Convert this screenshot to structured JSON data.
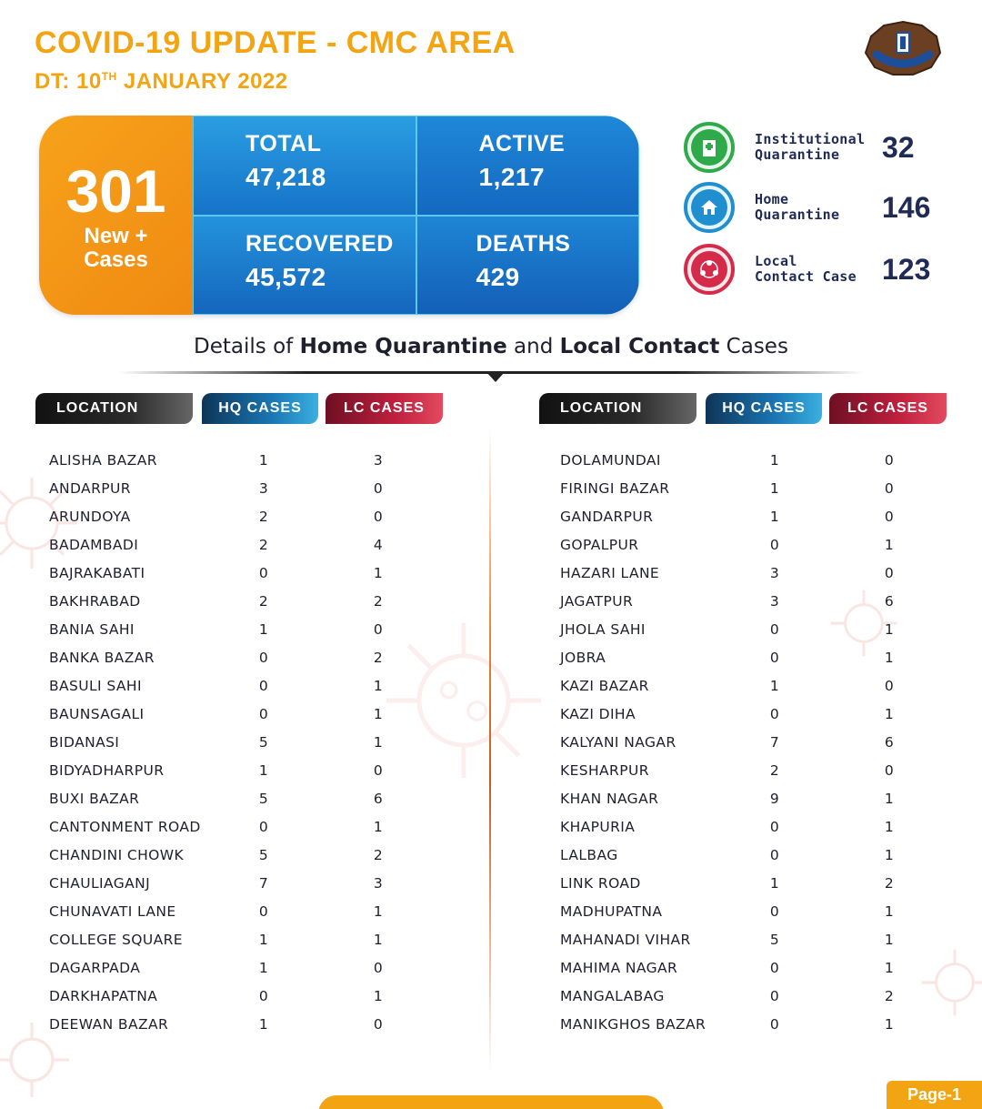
{
  "header": {
    "title": "COVID-19 UPDATE - CMC AREA",
    "date_prefix": "DT: 10",
    "date_sup": "TH",
    "date_suffix": " JANUARY 2022"
  },
  "summary": {
    "new_cases_value": "301",
    "new_cases_label_1": "New +",
    "new_cases_label_2": "Cases",
    "total_label": "TOTAL",
    "total_value": "47,218",
    "active_label": "ACTIVE",
    "active_value": "1,217",
    "recovered_label": "RECOVERED",
    "recovered_value": "45,572",
    "deaths_label": "DEATHS",
    "deaths_value": "429"
  },
  "quarantine": [
    {
      "label_1": "Institutional",
      "label_2": "Quarantine",
      "value": "32",
      "color": "#2eaa4a"
    },
    {
      "label_1": "Home",
      "label_2": "Quarantine",
      "value": "146",
      "color": "#1f8fd0"
    },
    {
      "label_1": "Local",
      "label_2": "Contact Case",
      "value": "123",
      "color": "#d62a4a"
    }
  ],
  "details": {
    "prefix": "Details of ",
    "bold_1": "Home Quarantine",
    "middle": " and ",
    "bold_2": "Local Contact",
    "suffix": " Cases"
  },
  "columns": {
    "location": "LOCATION",
    "hq": "HQ CASES",
    "lc": "LC CASES"
  },
  "left_rows": [
    {
      "name": "ALISHA BAZAR",
      "hq": "1",
      "lc": "3"
    },
    {
      "name": "ANDARPUR",
      "hq": "3",
      "lc": "0"
    },
    {
      "name": "ARUNDOYA",
      "hq": "2",
      "lc": "0"
    },
    {
      "name": "BADAMBADI",
      "hq": "2",
      "lc": "4"
    },
    {
      "name": "BAJRAKABATI",
      "hq": "0",
      "lc": "1"
    },
    {
      "name": "BAKHRABAD",
      "hq": "2",
      "lc": "2"
    },
    {
      "name": "BANIA SAHI",
      "hq": "1",
      "lc": "0"
    },
    {
      "name": "BANKA BAZAR",
      "hq": "0",
      "lc": "2"
    },
    {
      "name": "BASULI SAHI",
      "hq": "0",
      "lc": "1"
    },
    {
      "name": "BAUNSAGALI",
      "hq": "0",
      "lc": "1"
    },
    {
      "name": "BIDANASI",
      "hq": "5",
      "lc": "1"
    },
    {
      "name": "BIDYADHARPUR",
      "hq": "1",
      "lc": "0"
    },
    {
      "name": "BUXI BAZAR",
      "hq": "5",
      "lc": "6"
    },
    {
      "name": "CANTONMENT ROAD",
      "hq": "0",
      "lc": "1"
    },
    {
      "name": "CHANDINI CHOWK",
      "hq": "5",
      "lc": "2"
    },
    {
      "name": "CHAULIAGANJ",
      "hq": "7",
      "lc": "3"
    },
    {
      "name": "CHUNAVATI LANE",
      "hq": "0",
      "lc": "1"
    },
    {
      "name": "COLLEGE SQUARE",
      "hq": "1",
      "lc": "1"
    },
    {
      "name": "DAGARPADA",
      "hq": "1",
      "lc": "0"
    },
    {
      "name": "DARKHAPATNA",
      "hq": "0",
      "lc": "1"
    },
    {
      "name": "DEEWAN BAZAR",
      "hq": "1",
      "lc": "0"
    }
  ],
  "right_rows": [
    {
      "name": "DOLAMUNDAI",
      "hq": "1",
      "lc": "0"
    },
    {
      "name": "FIRINGI BAZAR",
      "hq": "1",
      "lc": "0"
    },
    {
      "name": "GANDARPUR",
      "hq": "1",
      "lc": "0"
    },
    {
      "name": "GOPALPUR",
      "hq": "0",
      "lc": "1"
    },
    {
      "name": "HAZARI LANE",
      "hq": "3",
      "lc": "0"
    },
    {
      "name": "JAGATPUR",
      "hq": "3",
      "lc": "6"
    },
    {
      "name": "JHOLA SAHI",
      "hq": "0",
      "lc": "1"
    },
    {
      "name": "JOBRA",
      "hq": "0",
      "lc": "1"
    },
    {
      "name": "KAZI BAZAR",
      "hq": "1",
      "lc": "0"
    },
    {
      "name": "KAZI DIHA",
      "hq": "0",
      "lc": "1"
    },
    {
      "name": "KALYANI NAGAR",
      "hq": "7",
      "lc": "6"
    },
    {
      "name": "KESHARPUR",
      "hq": "2",
      "lc": "0"
    },
    {
      "name": "KHAN NAGAR",
      "hq": "9",
      "lc": "1"
    },
    {
      "name": "KHAPURIA",
      "hq": "0",
      "lc": "1"
    },
    {
      "name": "LALBAG",
      "hq": "0",
      "lc": "1"
    },
    {
      "name": "LINK ROAD",
      "hq": "1",
      "lc": "2"
    },
    {
      "name": "MADHUPATNA",
      "hq": "0",
      "lc": "1"
    },
    {
      "name": "MAHANADI VIHAR",
      "hq": "5",
      "lc": "1"
    },
    {
      "name": "MAHIMA NAGAR",
      "hq": "0",
      "lc": "1"
    },
    {
      "name": "MANGALABAG",
      "hq": "0",
      "lc": "2"
    },
    {
      "name": "MANIKGHOS BAZAR",
      "hq": "0",
      "lc": "1"
    }
  ],
  "footer": {
    "page_label": "Page-1"
  }
}
